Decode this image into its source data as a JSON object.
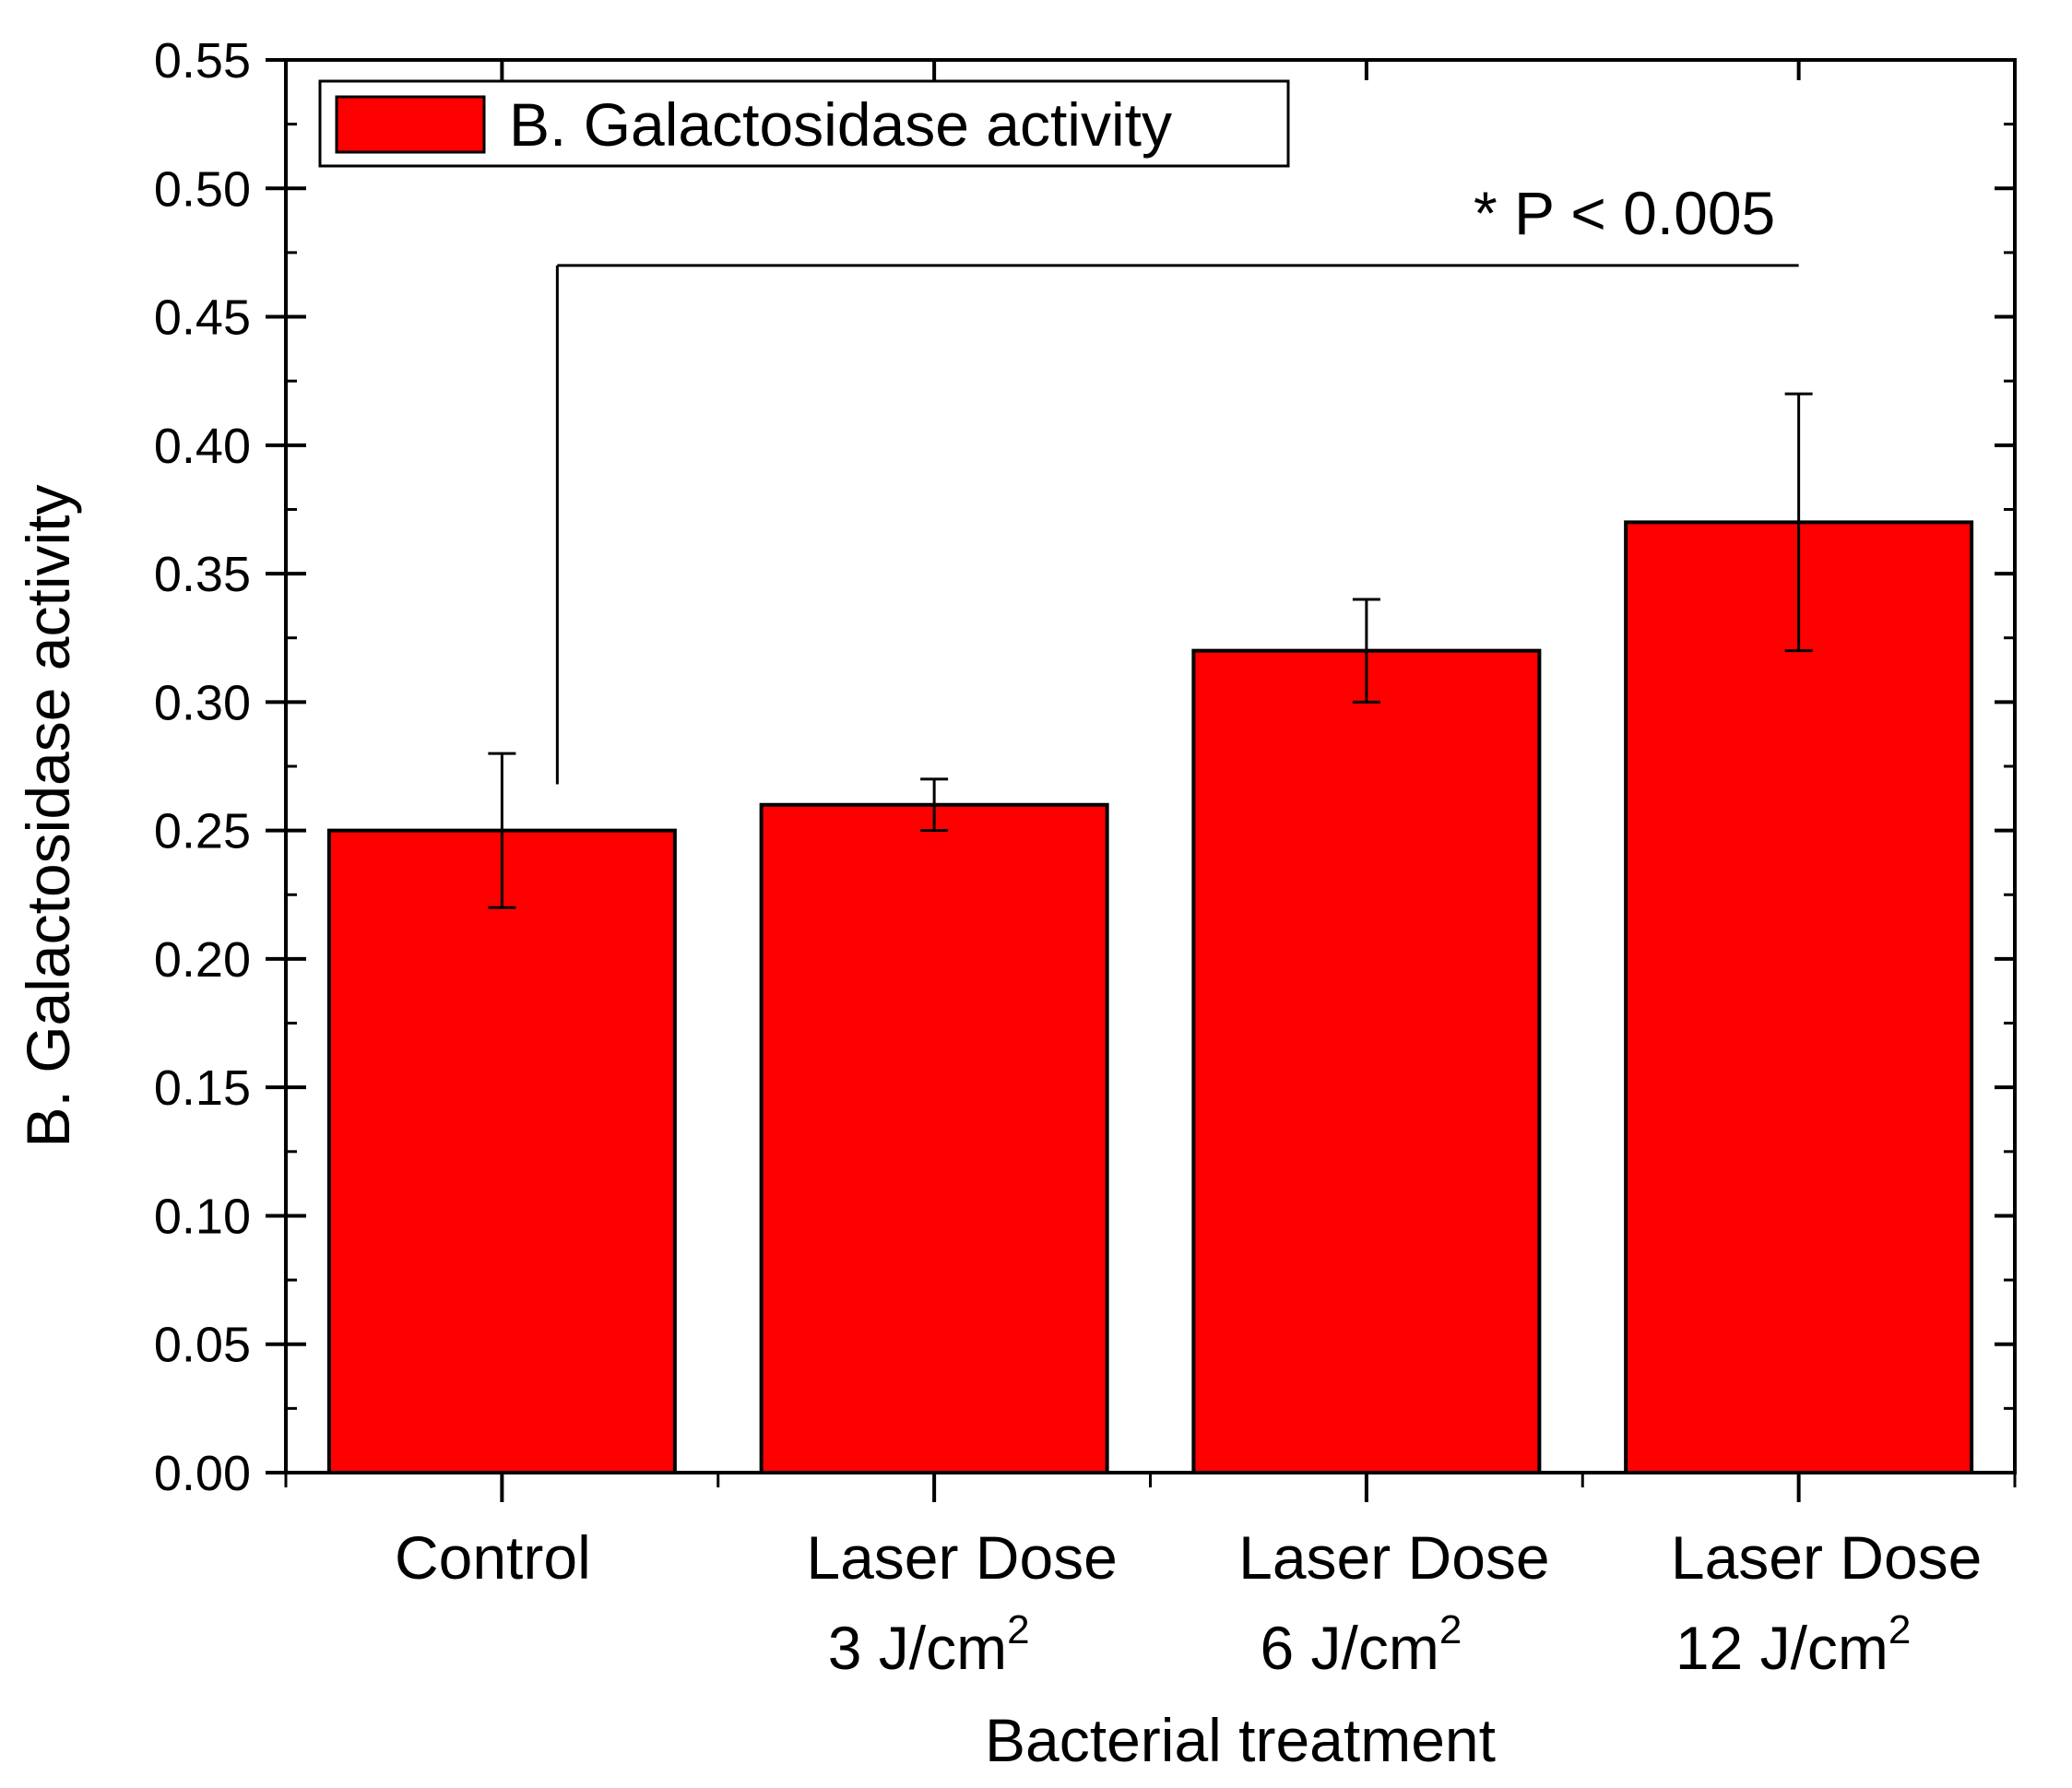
{
  "chart_data": {
    "type": "bar",
    "title": "",
    "xlabel": "Bacterial treatment",
    "ylabel": "B. Galactosidase activity",
    "ylim": [
      0,
      0.55
    ],
    "yticks": [
      "0.00",
      "0.05",
      "0.10",
      "0.15",
      "0.20",
      "0.25",
      "0.30",
      "0.35",
      "0.40",
      "0.45",
      "0.50",
      "0.55"
    ],
    "categories": [
      {
        "line1": "Control",
        "line2": "",
        "sup": ""
      },
      {
        "line1": "Laser Dose",
        "line2": "3 J/cm",
        "sup": "2"
      },
      {
        "line1": "Laser Dose",
        "line2": "6 J/cm",
        "sup": "2"
      },
      {
        "line1": "Laser Dose",
        "line2": "12 J/cm",
        "sup": "2"
      }
    ],
    "series": [
      {
        "name": "B. Galactosidase activity",
        "color": "#ff0000",
        "values": [
          0.25,
          0.26,
          0.32,
          0.37
        ],
        "error_low": [
          0.22,
          0.25,
          0.3,
          0.32
        ],
        "error_high": [
          0.28,
          0.27,
          0.34,
          0.42
        ]
      }
    ],
    "legend": {
      "label": "B. Galactosidase activity",
      "position": "top-left"
    },
    "significance": {
      "label": "* P < 0.005",
      "from_category": 0,
      "to_category": 3,
      "level": 0.47,
      "start_level": 0.268
    }
  }
}
